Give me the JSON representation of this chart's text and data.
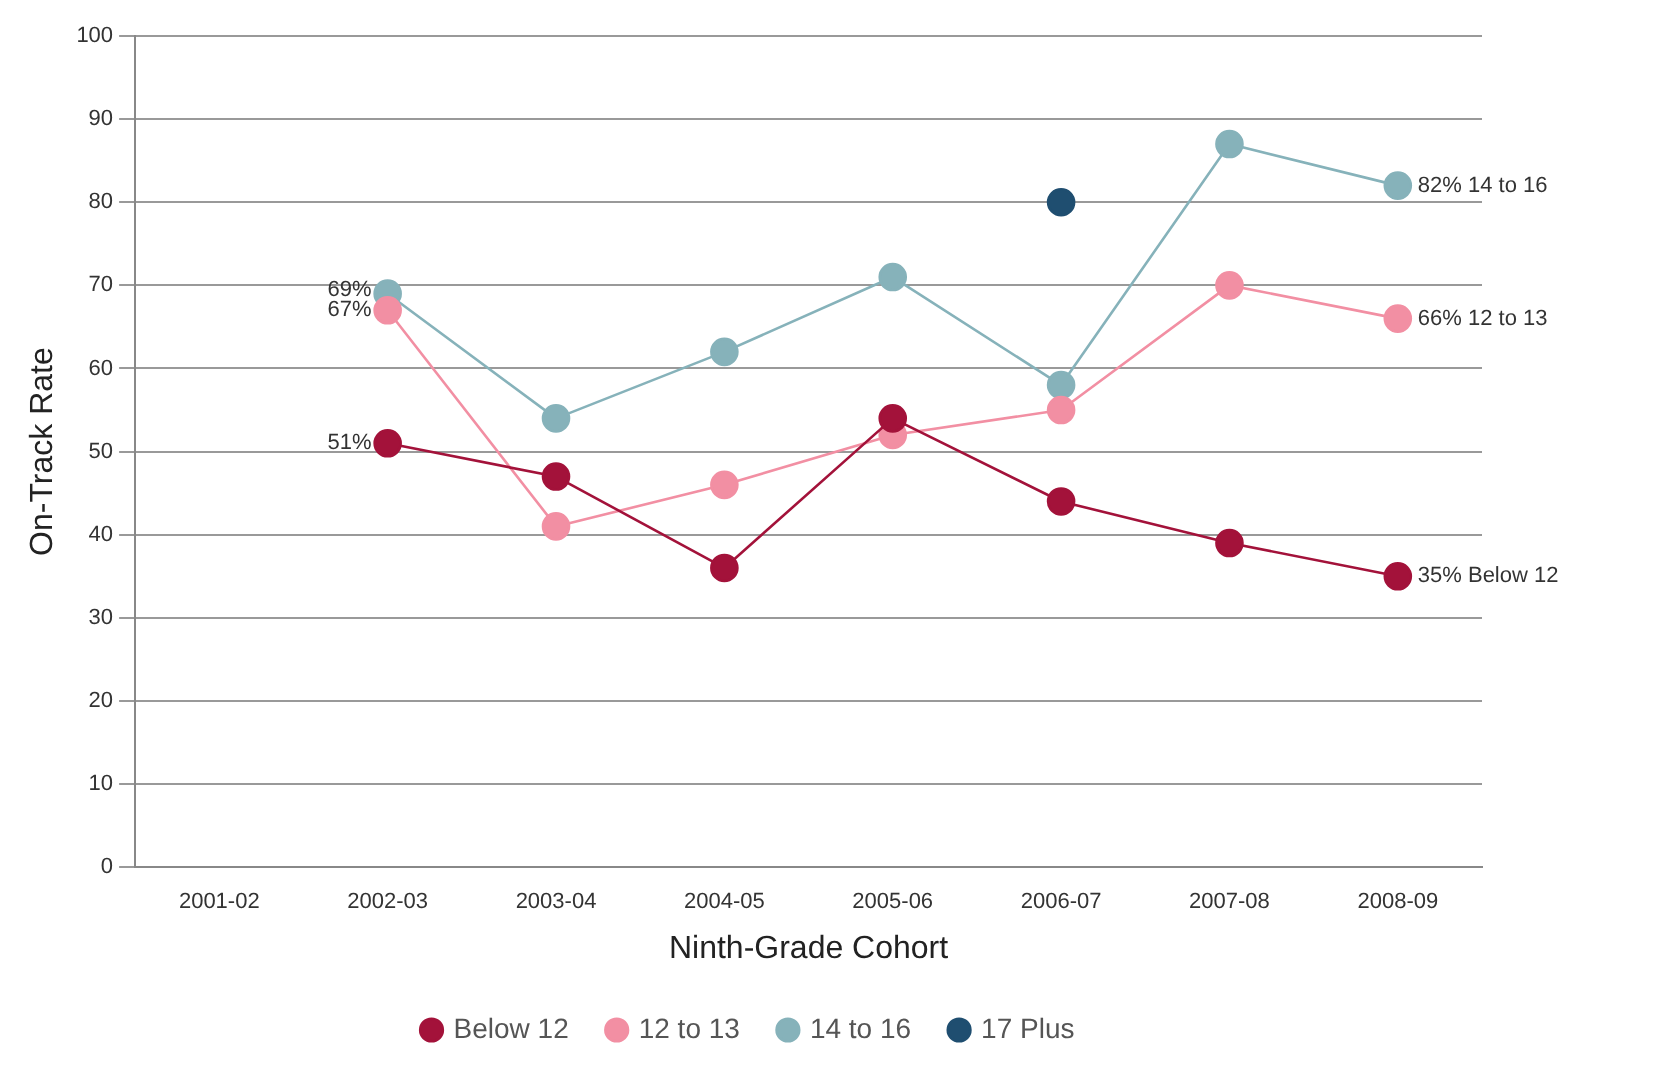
{
  "chart_data": {
    "type": "line",
    "xlabel": "Ninth-Grade Cohort",
    "ylabel": "On-Track Rate",
    "categories": [
      "2001-02",
      "2002-03",
      "2003-04",
      "2004-05",
      "2005-06",
      "2006-07",
      "2007-08",
      "2008-09"
    ],
    "series": [
      {
        "name": "Below 12",
        "color": "#a3123a",
        "values": [
          null,
          51,
          47,
          36,
          54,
          44,
          39,
          35
        ]
      },
      {
        "name": "12 to 13",
        "color": "#f28fa3",
        "values": [
          null,
          67,
          41,
          46,
          52,
          55,
          70,
          66
        ]
      },
      {
        "name": "14 to 16",
        "color": "#86b2ba",
        "values": [
          null,
          69,
          54,
          62,
          71,
          58,
          87,
          82
        ]
      },
      {
        "name": "17 Plus",
        "color": "#1f4e70",
        "values": [
          null,
          null,
          null,
          null,
          null,
          80,
          null,
          null
        ]
      }
    ],
    "ylim": [
      0,
      100
    ],
    "yticks": [
      0,
      10,
      20,
      30,
      40,
      50,
      60,
      70,
      80,
      90,
      100
    ],
    "grid": "y",
    "legend": "bottom",
    "marker": "circle",
    "line_style": "solid",
    "annotations": [
      {
        "text": "51%",
        "x": "2002-03",
        "y": 51
      },
      {
        "text": "67%",
        "x": "2002-03",
        "y": 67
      },
      {
        "text": "69%",
        "x": "2002-03",
        "y": 69
      },
      {
        "text": "35% Below 12",
        "x": "2008-09",
        "y": 35
      },
      {
        "text": "66% 12 to 13",
        "x": "2008-09",
        "y": 66
      },
      {
        "text": "82% 14 to 16",
        "x": "2008-09",
        "y": 82
      }
    ]
  }
}
